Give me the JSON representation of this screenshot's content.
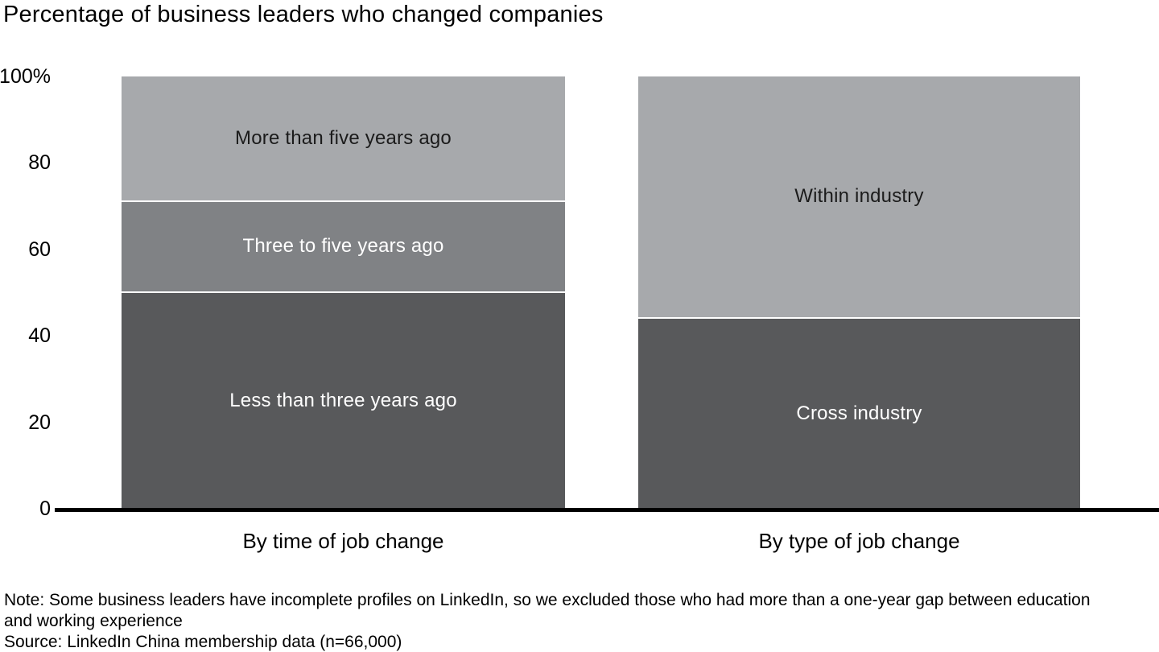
{
  "chart_data": {
    "type": "bar",
    "subtype": "stacked-percentage",
    "title": "Percentage of business leaders who changed companies",
    "grid": false,
    "legend": false,
    "y_axis": {
      "min": 0,
      "max": 100,
      "ticks": [
        {
          "label": "100%",
          "value": 100
        },
        {
          "label": "80",
          "value": 80
        },
        {
          "label": "60",
          "value": 60
        },
        {
          "label": "40",
          "value": 40
        },
        {
          "label": "20",
          "value": 20
        },
        {
          "label": "0",
          "value": 0
        }
      ]
    },
    "bars": [
      {
        "category": "By time of job change",
        "segments": [
          {
            "label": "Less than three years ago",
            "value": 50,
            "color": "#58595b",
            "label_color": "#ffffff"
          },
          {
            "label": "Three to five years ago",
            "value": 21,
            "color": "#808285",
            "label_color": "#ffffff"
          },
          {
            "label": "More than five years ago",
            "value": 29,
            "color": "#a7a9ac",
            "label_color": "#1b1b1b"
          }
        ]
      },
      {
        "category": "By type of job change",
        "segments": [
          {
            "label": "Cross industry",
            "value": 44,
            "color": "#58595b",
            "label_color": "#ffffff"
          },
          {
            "label": "Within industry",
            "value": 56,
            "color": "#a7a9ac",
            "label_color": "#1b1b1b"
          }
        ]
      }
    ]
  },
  "footnotes": {
    "note": "Note: Some business leaders have incomplete profiles on LinkedIn, so we excluded those who had more than a one-year gap between education and working experience",
    "source": "Source: LinkedIn China membership data (n=66,000)"
  },
  "colors": {
    "dark_gray": "#58595b",
    "medium_gray": "#808285",
    "light_gray": "#a7a9ac",
    "axis": "#000000",
    "background": "#ffffff"
  }
}
